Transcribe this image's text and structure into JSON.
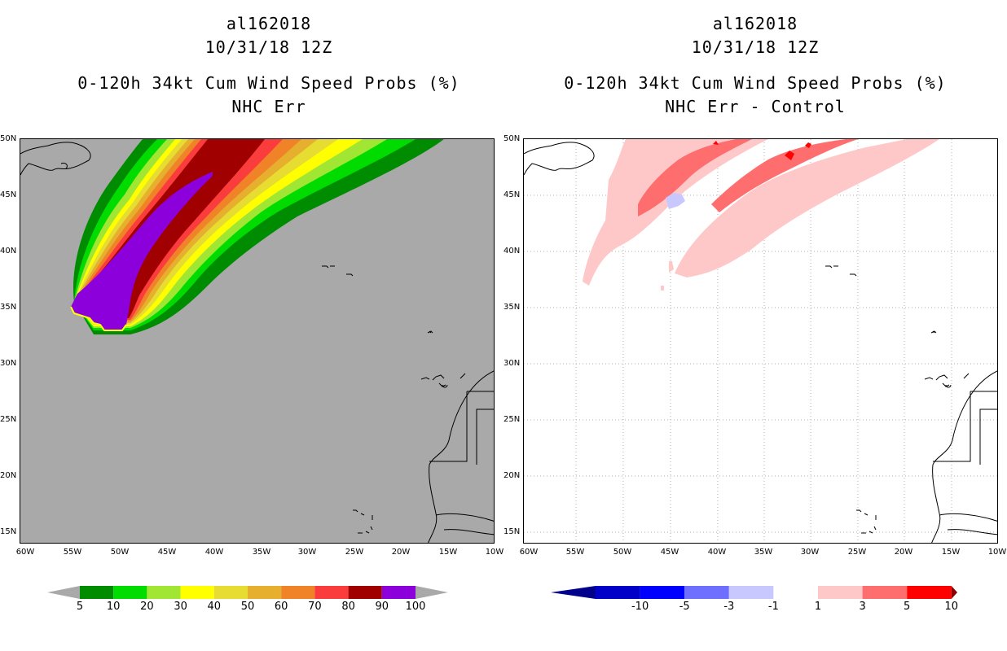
{
  "left": {
    "title_lines": [
      "al162018",
      "10/31/18 12Z",
      "0-120h 34kt Cum Wind Speed Probs (%)",
      "NHC Err"
    ],
    "colorbar": {
      "labels": [
        "5",
        "10",
        "20",
        "30",
        "40",
        "50",
        "60",
        "70",
        "80",
        "90",
        "100"
      ],
      "colors": [
        "#008c00",
        "#00dc00",
        "#a0e632",
        "#ffff00",
        "#e6dc32",
        "#e6af2d",
        "#f08228",
        "#fa3c3c",
        "#a00000",
        "#8c00dc"
      ],
      "background": "#a9a9a9"
    }
  },
  "right": {
    "title_lines": [
      "al162018",
      "10/31/18 12Z",
      "0-120h 34kt Cum Wind Speed Probs (%)",
      "NHC Err - Control"
    ],
    "colorbar": {
      "labels": [
        "-10",
        "-5",
        "-3",
        "-1",
        "1",
        "3",
        "5",
        "10"
      ],
      "colors": [
        "#0000c8",
        "#0000ff",
        "#6e6eff",
        "#c8c8ff",
        "#ffffff",
        "#ffc8c8",
        "#ff6e6e",
        "#ff0000"
      ],
      "end_low": "#00008c",
      "end_high": "#8c0000"
    }
  },
  "axes": {
    "lat_labels": [
      "50N",
      "45N",
      "40N",
      "35N",
      "30N",
      "25N",
      "20N",
      "15N"
    ],
    "lon_labels": [
      "60W",
      "55W",
      "50W",
      "45W",
      "40W",
      "35W",
      "30W",
      "25W",
      "20W",
      "15W",
      "10W"
    ]
  }
}
